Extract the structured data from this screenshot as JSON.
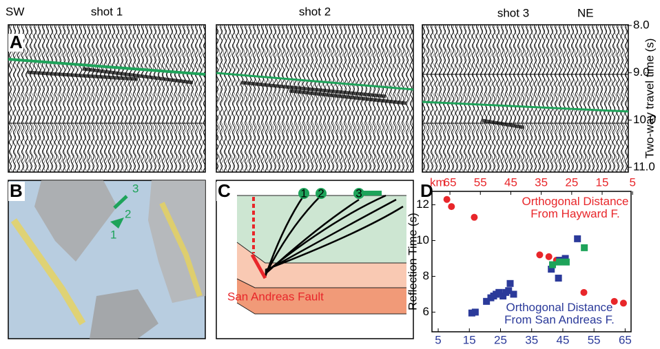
{
  "panels": {
    "a": "A",
    "b": "B",
    "c": "C",
    "d": "D"
  },
  "seismic": {
    "left_label": "SW",
    "right_label": "NE",
    "shots": [
      "shot 1",
      "shot 2",
      "shot 3"
    ],
    "ylabel": "Two-way travel time (s)",
    "ylim": [
      8,
      11.1
    ],
    "yticks": [
      {
        "value": 8,
        "label": "8.0"
      },
      {
        "value": 9,
        "label": "9.0"
      },
      {
        "value": 10,
        "label": "10.0"
      },
      {
        "value": 11,
        "label": "11.0"
      }
    ]
  },
  "map": {
    "shots": [
      "1",
      "2",
      "3"
    ]
  },
  "cross_section": {
    "shots": [
      "1",
      "2",
      "3"
    ],
    "fault_label": "San Andreas Fault"
  },
  "chart_data": {
    "type": "scatter",
    "ylabel": "Reflection Time (s)",
    "x2unit": "km",
    "xlim": [
      3,
      66.9
    ],
    "x2lim": [
      70.9,
      5.5
    ],
    "ylim": [
      4.9,
      12.75
    ],
    "xticks": [
      5,
      15,
      25,
      35,
      45,
      55,
      65
    ],
    "x2ticks": [
      65,
      55,
      45,
      35,
      25,
      15,
      5
    ],
    "yticks": [
      6,
      8,
      10,
      12
    ],
    "series": [
      {
        "name": "Orthogonal Distance From Hayward F.",
        "color": "#e8262a",
        "marker": "circle",
        "axis": "x2",
        "x": [
          66,
          64.5,
          57,
          35.5,
          32.5,
          30,
          21,
          11,
          8
        ],
        "values": [
          12.3,
          11.9,
          11.3,
          9.2,
          9.1,
          8.9,
          7.1,
          6.6,
          6.5
        ]
      },
      {
        "name": "Orthogonal Distance From San Andreas F.",
        "color": "#2b3a9a",
        "marker": "square",
        "x": [
          15.8,
          16.9,
          20.5,
          21.9,
          22.8,
          23.6,
          24.5,
          25.8,
          26.7,
          27.6,
          28.1,
          29.2,
          41.3,
          43.6,
          44,
          45.8,
          49.7
        ],
        "values": [
          5.95,
          6.0,
          6.6,
          6.8,
          6.9,
          7.0,
          7.1,
          6.9,
          7.1,
          7.2,
          7.6,
          7.0,
          8.4,
          7.9,
          8.9,
          9.0,
          10.1
        ]
      },
      {
        "color": "#1ea35a",
        "marker": "square",
        "x": [
          41.7,
          43.9,
          46.1,
          51.9
        ],
        "values": [
          8.65,
          8.8,
          8.8,
          9.6
        ]
      }
    ]
  }
}
